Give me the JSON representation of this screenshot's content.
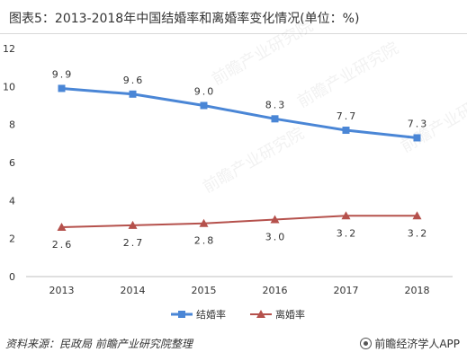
{
  "title": "图表5：2013-2018年中国结婚率和离婚率变化情况(单位：%)",
  "source": "资料来源：民政局 前瞻产业研究院整理",
  "brand": "前瞻经济学人APP",
  "watermark": "前瞻产业研究院",
  "colors": {
    "marriage": "#4a86d6",
    "divorce": "#b5514c"
  },
  "chart_data": {
    "type": "line",
    "categories": [
      "2013",
      "2014",
      "2015",
      "2016",
      "2017",
      "2018"
    ],
    "series": [
      {
        "name": "结婚率",
        "values": [
          9.9,
          9.6,
          9.0,
          8.3,
          7.7,
          7.3
        ],
        "labels": [
          "9.9",
          "9.6",
          "9.0",
          "8.3",
          "7.7",
          "7.3"
        ],
        "marker": "square",
        "color": "#4a86d6"
      },
      {
        "name": "离婚率",
        "values": [
          2.6,
          2.7,
          2.8,
          3.0,
          3.2,
          3.2
        ],
        "labels": [
          "2.6",
          "2.7",
          "2.8",
          "3.0",
          "3.2",
          "3.2"
        ],
        "marker": "triangle",
        "color": "#b5514c"
      }
    ],
    "yticks": [
      "0",
      "2",
      "4",
      "6",
      "8",
      "10",
      "12"
    ],
    "ylim": [
      0,
      12
    ],
    "grid": false,
    "legend": "bottom"
  }
}
